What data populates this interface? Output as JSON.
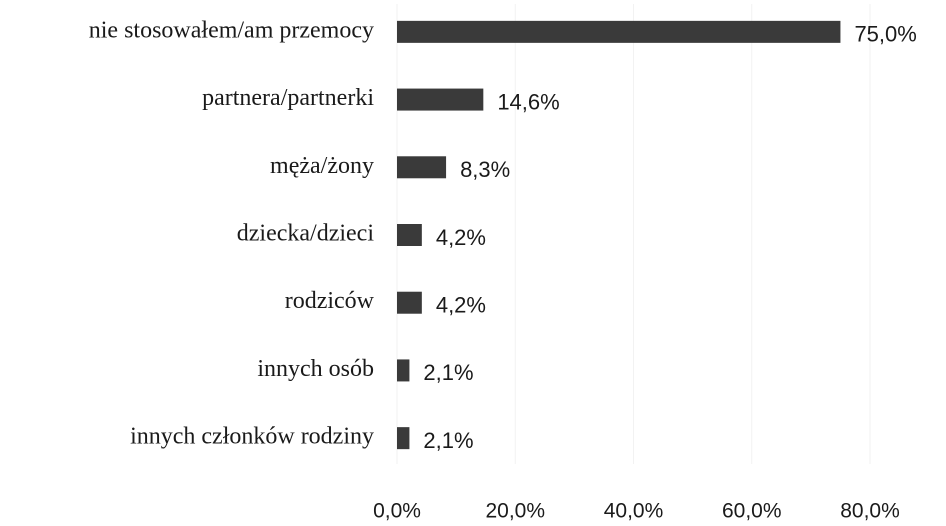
{
  "chart_data": {
    "type": "bar",
    "orientation": "horizontal",
    "categories": [
      "nie stosowałem/am przemocy",
      "partnera/partnerki",
      "męża/żony",
      "dziecka/dzieci",
      "rodziców",
      "innych osób",
      "innych członków rodziny"
    ],
    "values": [
      75.0,
      14.6,
      8.3,
      4.2,
      4.2,
      2.1,
      2.1
    ],
    "value_labels": [
      "75,0%",
      "14,6%",
      "8,3%",
      "4,2%",
      "4,2%",
      "2,1%",
      "2,1%"
    ],
    "color": "#3a3a3a",
    "xlim": [
      0,
      80
    ],
    "xticks": [
      {
        "value": 0,
        "label": "0,0%"
      },
      {
        "value": 20,
        "label": "20,0%"
      },
      {
        "value": 40,
        "label": "40,0%"
      },
      {
        "value": 60,
        "label": "60,0%"
      },
      {
        "value": 80,
        "label": "80,0%"
      }
    ],
    "grid": true
  }
}
